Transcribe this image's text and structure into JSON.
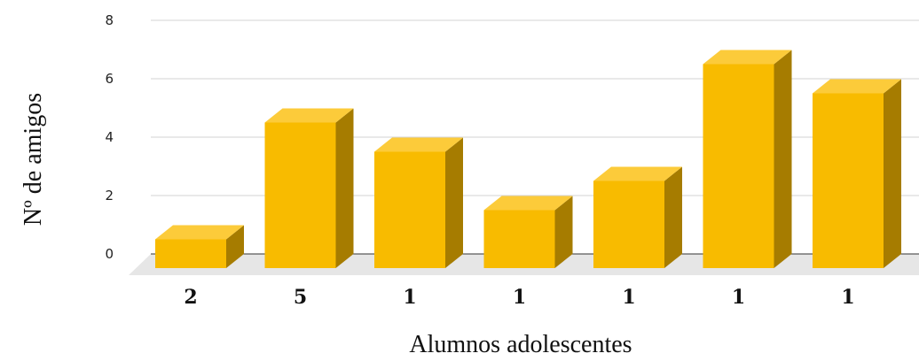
{
  "chart_data": {
    "type": "bar",
    "style": "3d-column",
    "title": "",
    "xlabel": "Alumnos adolescentes",
    "ylabel": "Nº de amigos",
    "ylim": [
      0,
      8
    ],
    "yticks": [
      0,
      2,
      4,
      6,
      8
    ],
    "grid": true,
    "categories": [
      "2",
      "5",
      "1",
      "1",
      "1",
      "1",
      "1"
    ],
    "series": [
      {
        "values": [
          1,
          5,
          4,
          2,
          3,
          7,
          6
        ]
      }
    ],
    "colors": {
      "bar_front": "#F8BB00",
      "bar_top": "#FCCB3A",
      "bar_side": "#A67C00",
      "floor": "#E6E6E6",
      "gridline": "#D3D3D3"
    }
  }
}
